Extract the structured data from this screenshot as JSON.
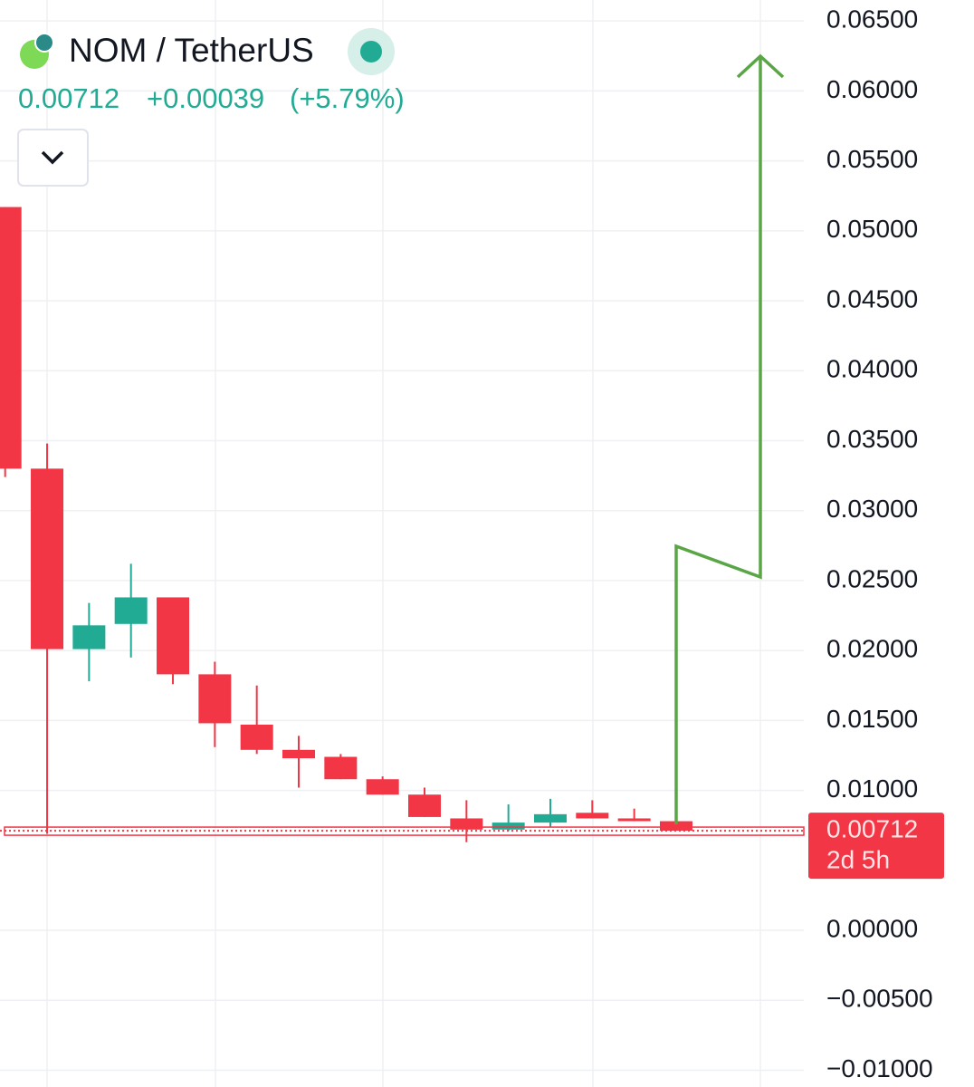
{
  "header": {
    "symbol": "NOM / TetherUS",
    "price": "0.00712",
    "change": "+0.00039",
    "change_pct": "(+5.79%)"
  },
  "chart_data": {
    "type": "candlestick",
    "open": [
      0.0517,
      0.033,
      0.0201,
      0.0219,
      0.0238,
      0.0183,
      0.0147,
      0.0129,
      0.0124,
      0.0108,
      0.0097,
      0.008,
      0.0072,
      0.0077,
      0.0084,
      0.008,
      0.0078
    ],
    "high": [
      0.0517,
      0.0348,
      0.0234,
      0.0262,
      0.0238,
      0.0192,
      0.0175,
      0.0139,
      0.0126,
      0.011,
      0.0102,
      0.0093,
      0.009,
      0.0094,
      0.0093,
      0.0087,
      0.0078
    ],
    "low": [
      0.0324,
      0.0069,
      0.0178,
      0.0195,
      0.0176,
      0.0131,
      0.0126,
      0.0102,
      0.0108,
      0.0097,
      0.0081,
      0.0063,
      0.0071,
      0.0074,
      0.008,
      0.0078,
      0.00712
    ],
    "close": [
      0.033,
      0.0201,
      0.0218,
      0.0238,
      0.0183,
      0.0148,
      0.0129,
      0.0123,
      0.0108,
      0.0097,
      0.0081,
      0.0072,
      0.0077,
      0.0083,
      0.008,
      0.0078,
      0.00712
    ],
    "up_color": "#22ab94",
    "down_color": "#f23645",
    "last_price": 0.00712,
    "countdown": "2d 5h",
    "ylim": [
      -0.0112,
      0.0665
    ],
    "yticks": [
      {
        "value": 0.065,
        "label": "0.06500"
      },
      {
        "value": 0.06,
        "label": "0.06000"
      },
      {
        "value": 0.055,
        "label": "0.05500"
      },
      {
        "value": 0.05,
        "label": "0.05000"
      },
      {
        "value": 0.045,
        "label": "0.04500"
      },
      {
        "value": 0.04,
        "label": "0.04000"
      },
      {
        "value": 0.035,
        "label": "0.03500"
      },
      {
        "value": 0.03,
        "label": "0.03000"
      },
      {
        "value": 0.025,
        "label": "0.02500"
      },
      {
        "value": 0.02,
        "label": "0.02000"
      },
      {
        "value": 0.015,
        "label": "0.01500"
      },
      {
        "value": 0.01,
        "label": "0.01000"
      },
      {
        "value": 0,
        "label": "0.00000"
      },
      {
        "value": -0.005,
        "label": "−0.00500"
      },
      {
        "value": -0.01,
        "label": "−0.01000"
      }
    ],
    "grid": true
  }
}
